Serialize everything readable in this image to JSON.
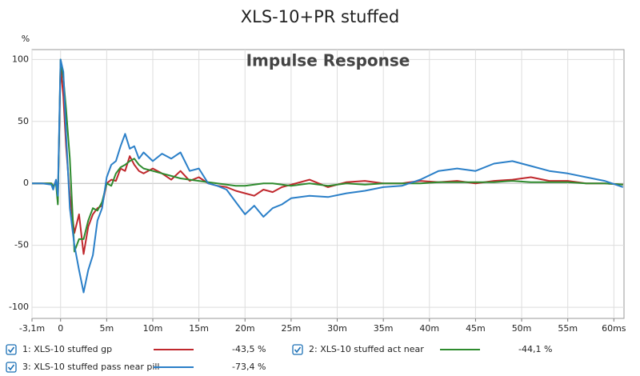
{
  "chart_data": {
    "type": "line",
    "title": "XLS-10+PR stuffed",
    "annotation": "Impulse Response",
    "y_label": "%",
    "xlim": [
      -3.1,
      61.1
    ],
    "ylim": [
      -109,
      108
    ],
    "xticks": [
      {
        "value": -3.1,
        "label": "-3,1m"
      },
      0,
      {
        "value": 5,
        "label": "5m"
      },
      {
        "value": 10,
        "label": "10m"
      },
      {
        "value": 15,
        "label": "15m"
      },
      {
        "value": 20,
        "label": "20m"
      },
      {
        "value": 25,
        "label": "25m"
      },
      {
        "value": 30,
        "label": "30m"
      },
      {
        "value": 35,
        "label": "35m"
      },
      {
        "value": 40,
        "label": "40m"
      },
      {
        "value": 45,
        "label": "45m"
      },
      {
        "value": 50,
        "label": "50m"
      },
      {
        "value": 55,
        "label": "55m"
      },
      {
        "value": 60,
        "label": "60ms"
      }
    ],
    "yticks": [
      100,
      50,
      0,
      -50,
      -100
    ],
    "grid": true,
    "x": [
      -3.1,
      -2,
      -1,
      -0.8,
      -0.5,
      -0.3,
      0,
      0.3,
      0.6,
      1,
      1.5,
      2,
      2.5,
      3,
      3.5,
      4,
      4.5,
      5,
      5.5,
      6,
      6.5,
      7,
      7.5,
      8,
      8.5,
      9,
      10,
      11,
      12,
      13,
      14,
      15,
      16,
      17,
      18,
      19,
      20,
      21,
      22,
      23,
      24,
      25,
      27,
      29,
      31,
      33,
      35,
      37,
      39,
      41,
      43,
      45,
      47,
      49,
      51,
      53,
      55,
      57,
      59,
      61
    ],
    "series": [
      {
        "name": "1: XLS-10 stuffed gp",
        "legend_value": "-43,5 %",
        "color": "#c0282d",
        "values": [
          0,
          0,
          0,
          -3,
          2,
          -15,
          95,
          70,
          30,
          -10,
          -40,
          -25,
          -57,
          -35,
          -25,
          -20,
          -18,
          0,
          3,
          2,
          12,
          10,
          22,
          15,
          10,
          8,
          12,
          8,
          3,
          10,
          2,
          5,
          0,
          -2,
          -3,
          -6,
          -8,
          -10,
          -5,
          -7,
          -3,
          -1,
          3,
          -3,
          1,
          2,
          0,
          0,
          2,
          1,
          2,
          0,
          2,
          3,
          5,
          2,
          2,
          0,
          0,
          -1
        ]
      },
      {
        "name": "2: XLS-10 stuffed act near",
        "legend_value": "-44,1 %",
        "color": "#2e8b2e",
        "values": [
          0,
          0,
          0,
          -2,
          0,
          -17,
          100,
          85,
          60,
          20,
          -55,
          -45,
          -45,
          -30,
          -20,
          -22,
          -15,
          0,
          -2,
          8,
          13,
          15,
          18,
          20,
          15,
          12,
          10,
          8,
          6,
          4,
          3,
          2,
          1,
          0,
          -1,
          -2,
          -2,
          -1,
          0,
          0,
          -1,
          -2,
          0,
          -2,
          0,
          -1,
          0,
          0,
          0,
          1,
          1,
          1,
          1,
          2,
          1,
          1,
          1,
          0,
          0,
          -1
        ]
      },
      {
        "name": "3: XLS-10 stuffed pass near pill",
        "legend_value": "-73,4 %",
        "color": "#2a7fc8",
        "values": [
          0,
          0,
          -1,
          -5,
          3,
          -10,
          100,
          90,
          40,
          -20,
          -50,
          -70,
          -88,
          -70,
          -58,
          -30,
          -20,
          5,
          15,
          18,
          30,
          40,
          28,
          30,
          20,
          25,
          18,
          24,
          20,
          25,
          10,
          12,
          0,
          -2,
          -5,
          -15,
          -25,
          -18,
          -27,
          -20,
          -17,
          -12,
          -10,
          -11,
          -8,
          -6,
          -3,
          -2,
          3,
          10,
          12,
          10,
          16,
          18,
          14,
          10,
          8,
          5,
          2,
          -3
        ]
      }
    ]
  }
}
